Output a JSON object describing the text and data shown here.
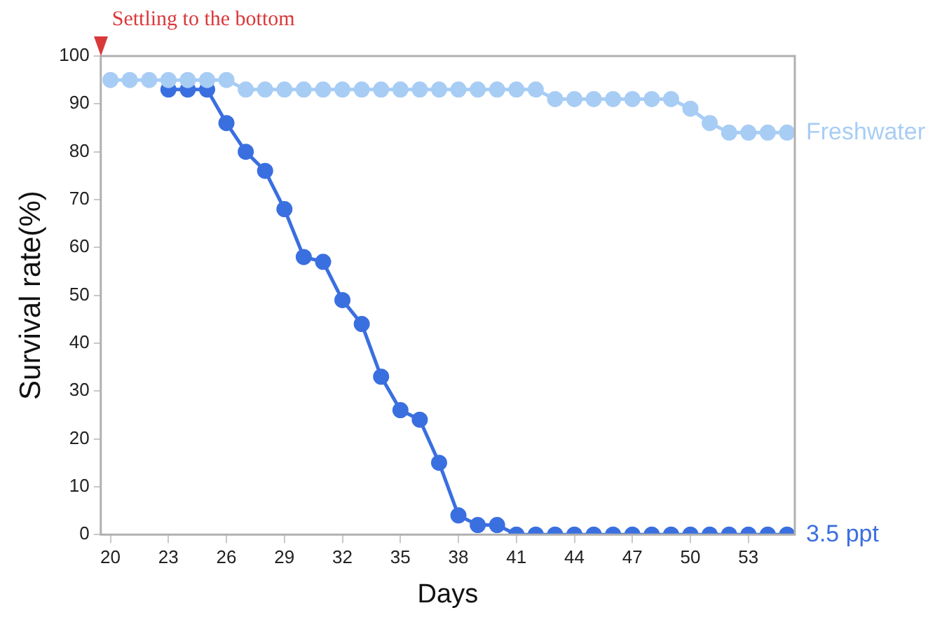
{
  "chart_data": {
    "type": "line",
    "xlabel": "Days",
    "ylabel": "Survival rate(%)",
    "x": [
      20,
      21,
      22,
      23,
      24,
      25,
      26,
      27,
      28,
      29,
      30,
      31,
      32,
      33,
      34,
      35,
      36,
      37,
      38,
      39,
      40,
      41,
      42,
      43,
      44,
      45,
      46,
      47,
      48,
      49,
      50,
      51,
      52,
      53,
      54,
      55
    ],
    "series": [
      {
        "name": "Freshwater",
        "color": "#a8cdf5",
        "values": [
          95,
          95,
          95,
          95,
          95,
          95,
          95,
          93,
          93,
          93,
          93,
          93,
          93,
          93,
          93,
          93,
          93,
          93,
          93,
          93,
          93,
          93,
          93,
          91,
          91,
          91,
          91,
          91,
          91,
          91,
          89,
          86,
          84,
          84,
          84,
          84
        ]
      },
      {
        "name": "3.5 ppt",
        "color": "#3a6fe0",
        "values": [
          null,
          null,
          null,
          93,
          93,
          93,
          86,
          80,
          76,
          68,
          58,
          57,
          49,
          44,
          33,
          26,
          24,
          15,
          4,
          2,
          2,
          0,
          0,
          0,
          0,
          0,
          0,
          0,
          0,
          0,
          0,
          0,
          0,
          0,
          0,
          0
        ]
      }
    ],
    "xlim": [
      19.5,
      55.4
    ],
    "xticks": [
      20,
      23,
      26,
      29,
      32,
      35,
      38,
      41,
      44,
      47,
      50,
      53
    ],
    "ylim": [
      0,
      100
    ],
    "yticks": [
      0,
      10,
      20,
      30,
      40,
      50,
      60,
      70,
      80,
      90,
      100
    ],
    "annotations": [
      "Settling to the bottom"
    ],
    "grid": false,
    "legend": false,
    "marker": "circle",
    "line_style": "solid"
  }
}
